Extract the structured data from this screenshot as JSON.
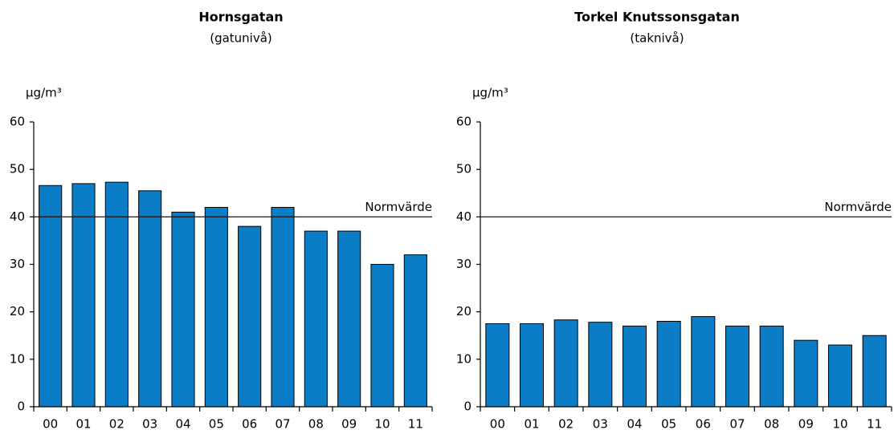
{
  "chart_data": [
    {
      "type": "bar",
      "title": "Hornsgatan",
      "subtitle": "(gatunivå)",
      "y_label": "µg/m³",
      "categories": [
        "00",
        "01",
        "02",
        "03",
        "04",
        "05",
        "06",
        "07",
        "08",
        "09",
        "10",
        "11"
      ],
      "values": [
        46.6,
        47,
        47.3,
        45.5,
        41,
        42,
        38,
        42,
        37,
        37,
        30,
        32
      ],
      "color": "#0a7dc6",
      "ylim": [
        0,
        60
      ],
      "yticks": [
        0,
        10,
        20,
        30,
        40,
        50,
        60
      ],
      "reference_line": {
        "value": 40,
        "label": "Normvärde"
      }
    },
    {
      "type": "bar",
      "title": "Torkel Knutssonsgatan",
      "subtitle": "(taknivå)",
      "y_label": "µg/m³",
      "categories": [
        "00",
        "01",
        "02",
        "03",
        "04",
        "05",
        "06",
        "07",
        "08",
        "09",
        "10",
        "11"
      ],
      "values": [
        17.5,
        17.5,
        18.3,
        17.8,
        17,
        18,
        19,
        17,
        17,
        14,
        13,
        15
      ],
      "color": "#0a7dc6",
      "ylim": [
        0,
        60
      ],
      "yticks": [
        0,
        10,
        20,
        30,
        40,
        50,
        60
      ],
      "reference_line": {
        "value": 40,
        "label": "Normvärde"
      }
    }
  ]
}
